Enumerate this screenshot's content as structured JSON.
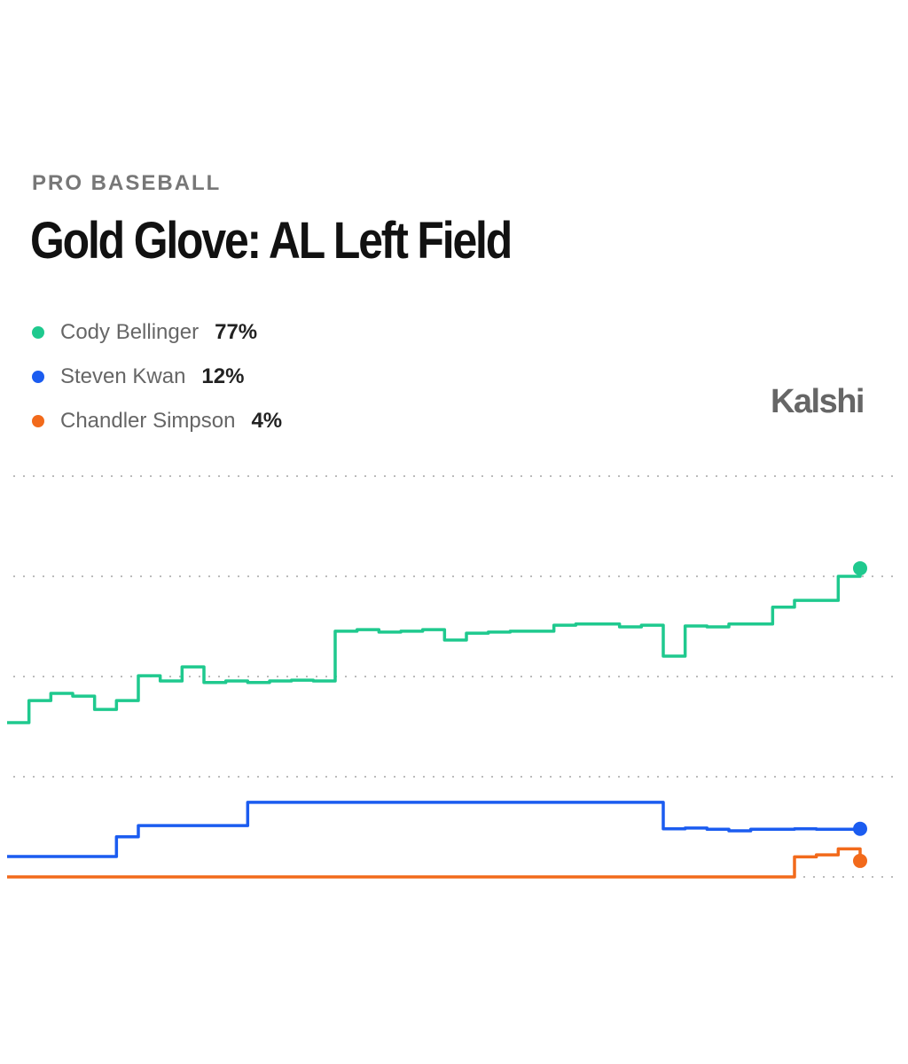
{
  "chart_data": {
    "type": "line",
    "subtitle": "PRO BASEBALL",
    "title": "Gold Glove: AL Left Field",
    "brand": "Kalshi",
    "ylim": [
      0,
      100
    ],
    "yticks": [
      0,
      25,
      50,
      75,
      100
    ],
    "grid": true,
    "series": [
      {
        "name": "Cody Bellinger",
        "color": "#1fc98e",
        "current": {
          "value": 77,
          "label": "77%"
        },
        "values": [
          38.5,
          44.0,
          45.8,
          45.1,
          41.8,
          44.0,
          50.2,
          48.9,
          52.4,
          48.5,
          48.9,
          48.5,
          48.9,
          49.1,
          48.9,
          61.3,
          61.7,
          61.1,
          61.3,
          61.7,
          59.1,
          60.8,
          61.1,
          61.3,
          61.3,
          62.8,
          63.1,
          63.1,
          62.4,
          62.8,
          55.1,
          62.6,
          62.4,
          63.1,
          63.1,
          67.3,
          69.0,
          69.0,
          75.0,
          77.0
        ]
      },
      {
        "name": "Steven Kwan",
        "color": "#1b5cf0",
        "current": {
          "value": 12,
          "label": "12%"
        },
        "values": [
          5.1,
          5.1,
          5.1,
          5.1,
          5.1,
          10.0,
          12.8,
          12.8,
          12.8,
          12.8,
          12.8,
          18.6,
          18.6,
          18.6,
          18.6,
          18.6,
          18.6,
          18.6,
          18.6,
          18.6,
          18.6,
          18.6,
          18.6,
          18.6,
          18.6,
          18.6,
          18.6,
          18.6,
          18.6,
          18.6,
          12.0,
          12.2,
          11.9,
          11.5,
          11.9,
          11.9,
          12.0,
          11.9,
          11.9,
          12.0
        ]
      },
      {
        "name": "Chandler Simpson",
        "color": "#f26a1b",
        "current": {
          "value": 4,
          "label": "4%"
        },
        "values": [
          0,
          0,
          0,
          0,
          0,
          0,
          0,
          0,
          0,
          0,
          0,
          0,
          0,
          0,
          0,
          0,
          0,
          0,
          0,
          0,
          0,
          0,
          0,
          0,
          0,
          0,
          0,
          0,
          0,
          0,
          0,
          0,
          0,
          0,
          0,
          0,
          5.0,
          5.5,
          7.0,
          4.0
        ]
      }
    ]
  }
}
